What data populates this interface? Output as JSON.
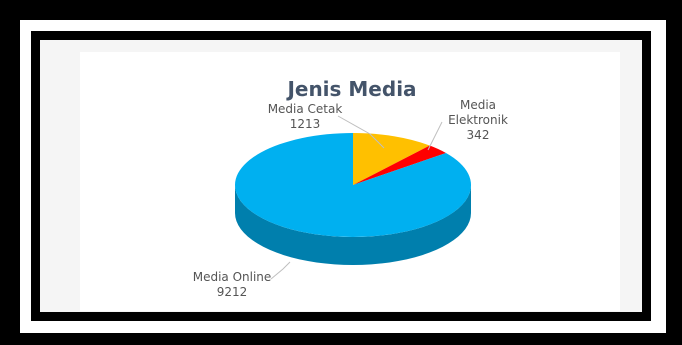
{
  "chart_data": {
    "type": "pie",
    "title": "Jenis Media",
    "slices": [
      {
        "label": "Media Cetak",
        "value": 1213,
        "color": "#FFC000"
      },
      {
        "label": "Media Elektronik",
        "value": 342,
        "color": "#FF0000"
      },
      {
        "label": "Media Online",
        "value": 9212,
        "color": "#00B0F0"
      }
    ],
    "label_lines": {
      "slice_0": [
        "Media Cetak",
        "1213"
      ],
      "slice_1": [
        "Media",
        "Elektronik",
        "342"
      ],
      "slice_2": [
        "Media Online",
        "9212"
      ]
    },
    "style": "3d"
  },
  "colors": {
    "frame_outer": "#000000",
    "frame_mid": "#ffffff",
    "panel": "#ffffff"
  }
}
